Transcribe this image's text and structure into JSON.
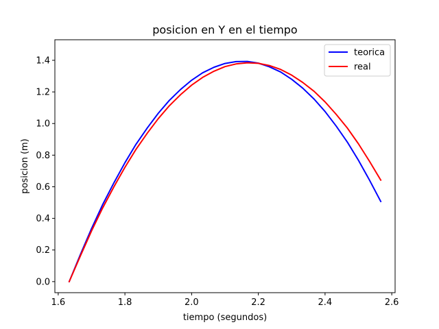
{
  "chart_data": {
    "type": "line",
    "title": "posicion en Y en el tiempo",
    "xlabel": "tiempo (segundos)",
    "ylabel": "posicion (m)",
    "xlim": [
      1.59,
      2.61
    ],
    "ylim": [
      -0.07,
      1.53
    ],
    "xticks": [
      1.6,
      1.8,
      2.0,
      2.2,
      2.4,
      2.6
    ],
    "xtick_labels": [
      "1.6",
      "1.8",
      "2.0",
      "2.2",
      "2.4",
      "2.6"
    ],
    "yticks": [
      0.0,
      0.2,
      0.4,
      0.6,
      0.8,
      1.0,
      1.2,
      1.4
    ],
    "ytick_labels": [
      "0.0",
      "0.2",
      "0.4",
      "0.6",
      "0.8",
      "1.0",
      "1.2",
      "1.4"
    ],
    "grid": false,
    "legend_position": "top-right",
    "series": [
      {
        "name": "teorica",
        "color": "#0000ff",
        "x": [
          1.633,
          1.667,
          1.7,
          1.733,
          1.767,
          1.8,
          1.833,
          1.867,
          1.9,
          1.933,
          1.967,
          2.0,
          2.033,
          2.067,
          2.1,
          2.133,
          2.167,
          2.2,
          2.233,
          2.267,
          2.3,
          2.333,
          2.367,
          2.4,
          2.433,
          2.467,
          2.5,
          2.533,
          2.567
        ],
        "values": [
          0.0,
          0.174,
          0.336,
          0.486,
          0.625,
          0.752,
          0.868,
          0.972,
          1.065,
          1.146,
          1.216,
          1.274,
          1.321,
          1.356,
          1.38,
          1.392,
          1.393,
          1.382,
          1.359,
          1.326,
          1.28,
          1.224,
          1.155,
          1.076,
          0.985,
          0.882,
          0.768,
          0.643,
          0.507
        ]
      },
      {
        "name": "real",
        "color": "#ff0000",
        "x": [
          1.633,
          1.667,
          1.7,
          1.733,
          1.767,
          1.8,
          1.833,
          1.867,
          1.9,
          1.933,
          1.967,
          2.0,
          2.033,
          2.067,
          2.1,
          2.133,
          2.167,
          2.2,
          2.233,
          2.267,
          2.3,
          2.333,
          2.367,
          2.4,
          2.433,
          2.467,
          2.5,
          2.533,
          2.567
        ],
        "values": [
          0.0,
          0.165,
          0.321,
          0.465,
          0.6,
          0.723,
          0.836,
          0.939,
          1.031,
          1.112,
          1.183,
          1.243,
          1.292,
          1.331,
          1.36,
          1.377,
          1.384,
          1.381,
          1.367,
          1.342,
          1.306,
          1.26,
          1.204,
          1.137,
          1.059,
          0.971,
          0.872,
          0.762,
          0.642
        ]
      }
    ]
  }
}
